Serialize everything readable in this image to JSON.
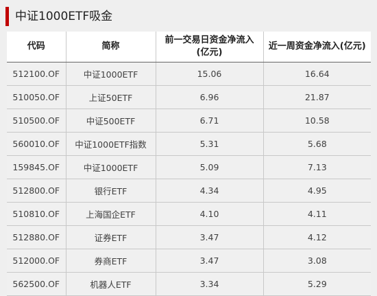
{
  "title": "中证1000ETF吸金",
  "table": {
    "headers": [
      "代码",
      "简称",
      "前一交易日资金净流入(亿元)",
      "近一周资金净流入(亿元)"
    ],
    "rows": [
      [
        "512100.OF",
        "中证1000ETF",
        "15.06",
        "16.64"
      ],
      [
        "510050.OF",
        "上证50ETF",
        "6.96",
        "21.87"
      ],
      [
        "510500.OF",
        "中证500ETF",
        "6.71",
        "10.58"
      ],
      [
        "560010.OF",
        "中证1000ETF指数",
        "5.31",
        "5.68"
      ],
      [
        "159845.OF",
        "中证1000ETF",
        "5.09",
        "7.13"
      ],
      [
        "512800.OF",
        "银行ETF",
        "4.34",
        "4.95"
      ],
      [
        "510810.OF",
        "上海国企ETF",
        "4.10",
        "4.11"
      ],
      [
        "512880.OF",
        "证券ETF",
        "3.47",
        "4.12"
      ],
      [
        "512000.OF",
        "券商ETF",
        "3.47",
        "3.08"
      ],
      [
        "562500.OF",
        "机器人ETF",
        "3.34",
        "5.29"
      ]
    ]
  },
  "colors": {
    "accent": "#c00000",
    "background": "#efefef",
    "header_bg": "#ffffff"
  }
}
